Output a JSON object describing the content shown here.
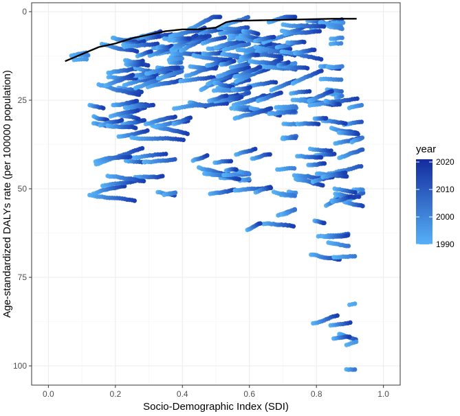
{
  "chart_data": {
    "type": "scatter",
    "title": "",
    "xlabel": "Socio-Demographic Index (SDI)",
    "ylabel": "Age-standardized DALYs rate (per 100000 population)",
    "xlim": [
      -0.05,
      1.05
    ],
    "ylim": [
      0,
      105
    ],
    "y_reversed": true,
    "x_ticks": [
      0.0,
      0.2,
      0.4,
      0.6,
      0.8,
      1.0
    ],
    "x_tick_labels": [
      "0.0",
      "0.2",
      "0.4",
      "0.6",
      "0.8",
      "1.0"
    ],
    "y_ticks": [
      0,
      25,
      50,
      75,
      100
    ],
    "y_tick_labels": [
      "0",
      "25",
      "50",
      "75",
      "100"
    ],
    "grid": true,
    "legend": {
      "title": "year",
      "placement": "right",
      "type": "colorbar",
      "min": 1990,
      "max": 2021,
      "ticks": [
        2020,
        2010,
        2000,
        1990
      ],
      "tick_labels": [
        "2020",
        "2010",
        "2000",
        "1990"
      ],
      "color_low": "#56b1f7",
      "color_high": "#132b9e"
    },
    "point_color_low": "#56b1f7",
    "point_color_high": "#1a3fb0",
    "trend_line": {
      "color": "#000000",
      "x": [
        0.05,
        0.1,
        0.15,
        0.2,
        0.25,
        0.3,
        0.35,
        0.4,
        0.45,
        0.5,
        0.53,
        0.55,
        0.6,
        0.65,
        0.7,
        0.75,
        0.8,
        0.85,
        0.9,
        0.92
      ],
      "y": [
        14,
        12,
        10,
        9,
        7.5,
        6.5,
        5.5,
        5,
        5,
        4.5,
        3,
        2.6,
        2.5,
        2.4,
        2.3,
        2.2,
        2.1,
        2,
        2,
        2
      ]
    },
    "point_clusters": [
      {
        "x": [
          0.05,
          0.1
        ],
        "y": [
          12,
          15
        ],
        "n": 30
      },
      {
        "x": [
          0.12,
          0.38
        ],
        "y": [
          6,
          23
        ],
        "n": 450
      },
      {
        "x": [
          0.35,
          0.58
        ],
        "y": [
          3,
          28
        ],
        "n": 550
      },
      {
        "x": [
          0.55,
          0.72
        ],
        "y": [
          2,
          32
        ],
        "n": 420
      },
      {
        "x": [
          0.68,
          0.86
        ],
        "y": [
          2,
          25
        ],
        "n": 300
      },
      {
        "x": [
          0.1,
          0.42
        ],
        "y": [
          26,
          36
        ],
        "n": 220
      },
      {
        "x": [
          0.12,
          0.36
        ],
        "y": [
          41,
          52
        ],
        "n": 140
      },
      {
        "x": [
          0.42,
          0.58
        ],
        "y": [
          42,
          52
        ],
        "n": 120
      },
      {
        "x": [
          0.55,
          0.72
        ],
        "y": [
          28,
          62
        ],
        "n": 180
      },
      {
        "x": [
          0.72,
          0.92
        ],
        "y": [
          25,
          55
        ],
        "n": 380
      },
      {
        "x": [
          0.78,
          0.88
        ],
        "y": [
          55,
          70
        ],
        "n": 60
      },
      {
        "x": [
          0.79,
          0.9
        ],
        "y": [
          69,
          102
        ],
        "n": 90
      }
    ]
  }
}
